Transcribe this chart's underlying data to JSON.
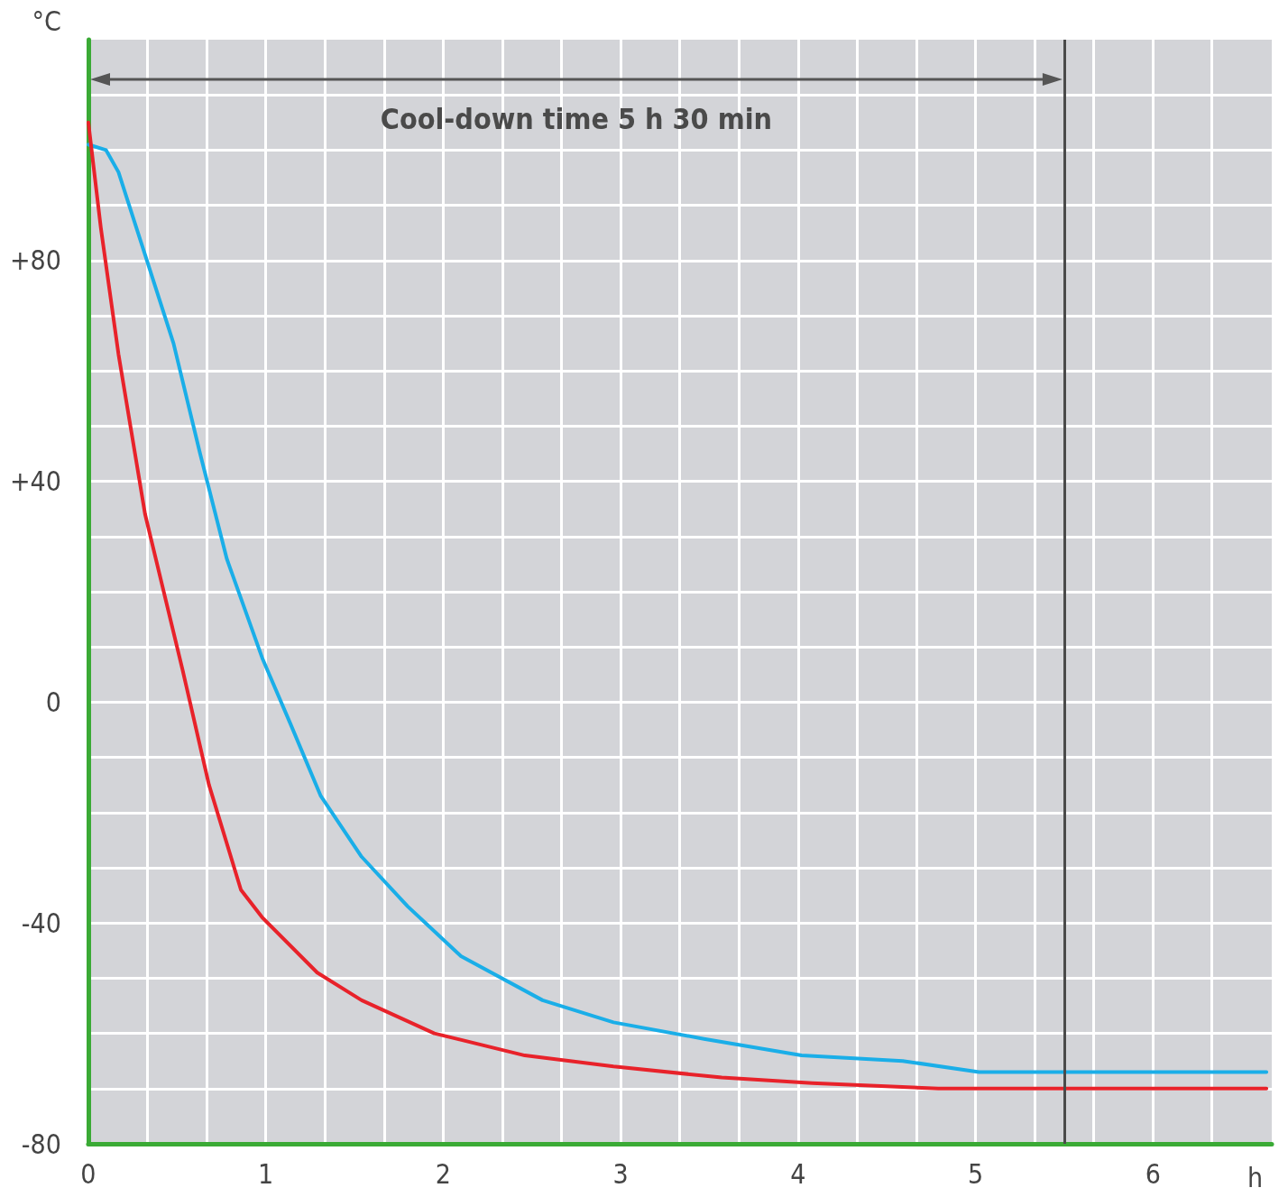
{
  "chart_data": {
    "type": "line",
    "xlabel": "h",
    "ylabel": "°C",
    "xlim": [
      0,
      6.67
    ],
    "ylim": [
      -80,
      120
    ],
    "xticks": [
      0,
      {
        "value": 0.333,
        "label": null
      },
      {
        "value": 0.667,
        "label": null
      },
      1,
      {
        "value": 1.333,
        "label": null
      },
      {
        "value": 1.667,
        "label": null
      },
      2,
      {
        "value": 2.333,
        "label": null
      },
      {
        "value": 2.667,
        "label": null
      },
      3,
      {
        "value": 3.333,
        "label": null
      },
      {
        "value": 3.667,
        "label": null
      },
      4,
      {
        "value": 4.333,
        "label": null
      },
      {
        "value": 4.667,
        "label": null
      },
      5,
      {
        "value": 5.333,
        "label": null
      },
      {
        "value": 5.667,
        "label": null
      },
      6,
      {
        "value": 6.333,
        "label": null
      }
    ],
    "yticks": [
      -80,
      {
        "value": -70,
        "label": null
      },
      {
        "value": -60,
        "label": null
      },
      {
        "value": -50,
        "label": null
      },
      -40,
      {
        "value": -30,
        "label": null
      },
      {
        "value": -20,
        "label": null
      },
      {
        "value": -10,
        "label": null
      },
      0,
      {
        "value": 10,
        "label": null
      },
      {
        "value": 20,
        "label": null
      },
      {
        "value": 30,
        "label": null
      },
      {
        "value": 40,
        "label": "+40"
      },
      {
        "value": 50,
        "label": null
      },
      {
        "value": 60,
        "label": null
      },
      {
        "value": 70,
        "label": null
      },
      {
        "value": 80,
        "label": "+80"
      },
      {
        "value": 90,
        "label": null
      },
      {
        "value": 100,
        "label": null
      },
      {
        "value": 110,
        "label": null
      }
    ],
    "grid": true,
    "marker": "none",
    "line_style": "solid",
    "series": [
      {
        "color": "#1aaee8",
        "x": [
          0,
          0.1,
          0.17,
          0.32,
          0.48,
          0.63,
          0.78,
          0.98,
          1.14,
          1.31,
          1.54,
          1.8,
          2.1,
          2.56,
          2.96,
          3.47,
          4.02,
          4.59,
          5.02,
          5.6,
          6.64
        ],
        "values": [
          101,
          100,
          96,
          81,
          65,
          45,
          26,
          8,
          -4,
          -17,
          -28,
          -37,
          -46,
          -54,
          -58,
          -61,
          -64,
          -65,
          -67,
          -67,
          -67
        ]
      },
      {
        "color": "#e8222a",
        "x": [
          0,
          0.07,
          0.17,
          0.32,
          0.53,
          0.68,
          0.86,
          0.98,
          1.29,
          1.54,
          1.95,
          2.46,
          2.96,
          3.57,
          4.08,
          4.79,
          6.64
        ],
        "values": [
          105,
          86,
          63,
          34,
          6,
          -15,
          -34,
          -39,
          -49,
          -54,
          -60,
          -64,
          -66,
          -68,
          -69,
          -70,
          -70
        ]
      }
    ],
    "ref_lines": [
      {
        "axis": "x",
        "value": 5.5,
        "color": "#4a4a4a"
      }
    ],
    "annotations": [
      "Cool-down time 5 h 30 min"
    ]
  }
}
